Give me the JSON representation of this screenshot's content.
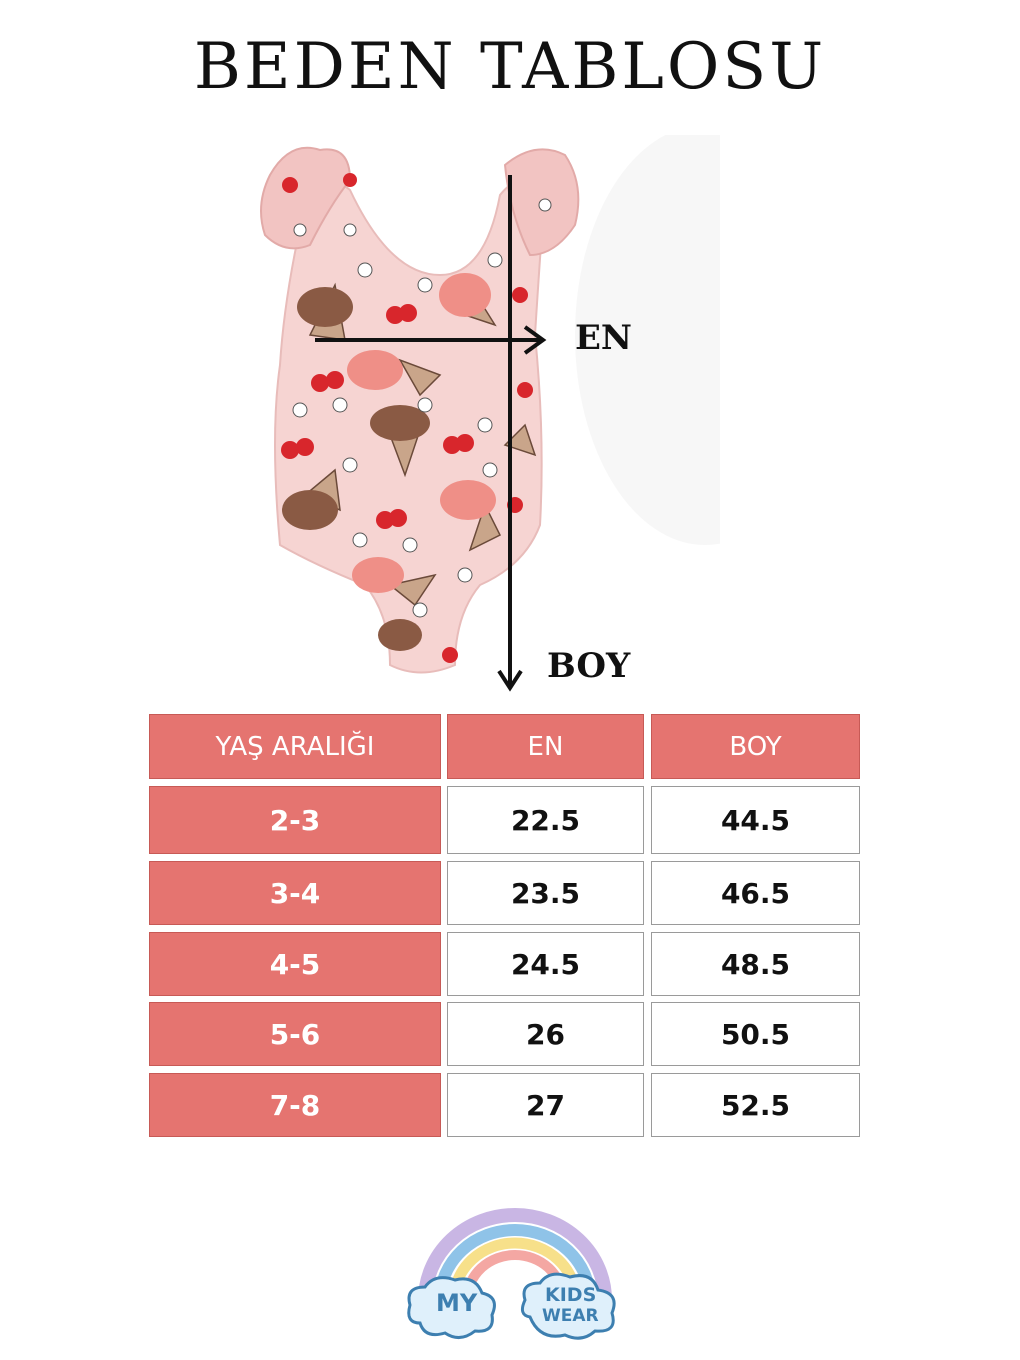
{
  "title": "BEDEN TABLOSU",
  "figure": {
    "width_label": "EN",
    "length_label": "BOY"
  },
  "table": {
    "headers": [
      "YAŞ ARALIĞI",
      "EN",
      "BOY"
    ],
    "rows": [
      [
        "2-3",
        "22.5",
        "44.5"
      ],
      [
        "3-4",
        "23.5",
        "46.5"
      ],
      [
        "4-5",
        "24.5",
        "48.5"
      ],
      [
        "5-6",
        "26",
        "50.5"
      ],
      [
        "7-8",
        "27",
        "52.5"
      ]
    ]
  },
  "logo": {
    "my": "MY",
    "kids": "KIDS",
    "wear": "WEAR"
  },
  "colors": {
    "header_bg": "#e57470",
    "swimsuit": "#f6d4d2",
    "logo_text": "#3d7fb0"
  }
}
